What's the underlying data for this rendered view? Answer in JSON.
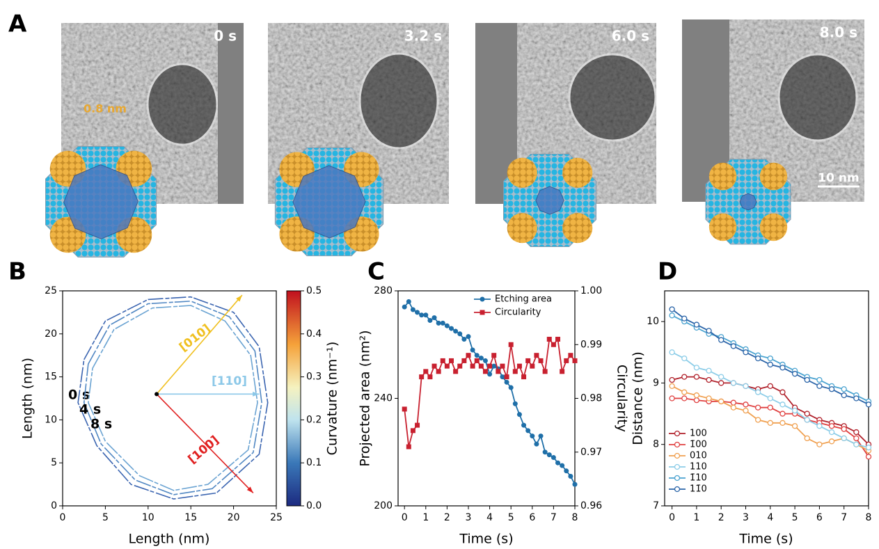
{
  "panel_a": {
    "label": "A",
    "frames": [
      "0 s",
      "3.2 s",
      "6.0 s",
      "8.0 s"
    ],
    "lattice_spacing": "0.8 nm",
    "scale_bar": "10 nm"
  },
  "chart_data": [
    {
      "type": "contour",
      "panel_label": "B",
      "xlabel": "Length (nm)",
      "ylabel": "Length (nm)",
      "xlim": [
        0,
        25
      ],
      "ylim": [
        0,
        25
      ],
      "xticks": [
        0,
        5,
        10,
        15,
        20,
        25
      ],
      "yticks": [
        0,
        5,
        10,
        15,
        20,
        25
      ],
      "colorbar_label": "Curvature (nm⁻¹)",
      "colorbar_lim": [
        0,
        0.5
      ],
      "colorbar_ticks": [
        {
          "value": 0,
          "label": "0.0"
        },
        0.1,
        0.2,
        0.3,
        0.4,
        0.5
      ],
      "series": [
        {
          "name": "0 s",
          "color": "#3a64b0",
          "x": [
            2.5,
            5,
            10,
            15,
            20,
            23,
            24,
            23,
            18,
            13,
            8,
            4,
            1.8,
            2.5
          ],
          "y": [
            17,
            21.5,
            24,
            24.3,
            22.5,
            18.5,
            12,
            6,
            1.5,
            0.8,
            2.5,
            7,
            12,
            17
          ]
        },
        {
          "name": "4 s",
          "color": "#4f86c2",
          "x": [
            3,
            5.5,
            10,
            15,
            19.5,
            22.5,
            23.3,
            22.3,
            17.5,
            13,
            8.5,
            4.5,
            2.5,
            3
          ],
          "y": [
            16.5,
            21,
            23.5,
            23.8,
            22,
            18,
            12,
            6.2,
            2,
            1.3,
            3,
            7.2,
            12,
            16.5
          ]
        },
        {
          "name": "8 s",
          "color": "#6aa3d2",
          "x": [
            3.5,
            6,
            10.5,
            15,
            19,
            22,
            22.8,
            21.7,
            17,
            13,
            9,
            5,
            3,
            3.5
          ],
          "y": [
            16,
            20.5,
            23,
            23.3,
            21.5,
            17.5,
            12,
            6.5,
            2.5,
            1.8,
            3.5,
            7.5,
            12,
            16
          ]
        }
      ],
      "annotations": [
        {
          "text": "[010]",
          "color": "#f0c020"
        },
        {
          "text": "[110]",
          "color": "#8cc8e8"
        },
        {
          "text": "[100]",
          "color": "#e02020"
        }
      ]
    },
    {
      "type": "line",
      "panel_label": "C",
      "xlabel": "Time (s)",
      "ylabel": "Projected area (nm²)",
      "y2label": "Circularity",
      "xlim": [
        -0.3,
        8
      ],
      "xticks": [
        0,
        1,
        2,
        3,
        4,
        5,
        6,
        7,
        8
      ],
      "ylim": [
        200,
        280
      ],
      "yticks": [
        200,
        240,
        280
      ],
      "y2lim": [
        0.96,
        1.0
      ],
      "y2ticks": [
        0.96,
        0.97,
        0.98,
        0.99,
        {
          "value": 1,
          "label": "1.00"
        }
      ],
      "legend": "upper right",
      "x": [
        0,
        0.2,
        0.4,
        0.6,
        0.8,
        1,
        1.2,
        1.4,
        1.6,
        1.8,
        2,
        2.2,
        2.4,
        2.6,
        2.8,
        3,
        3.2,
        3.4,
        3.6,
        3.8,
        4,
        4.2,
        4.4,
        4.6,
        4.8,
        5,
        5.2,
        5.4,
        5.6,
        5.8,
        6,
        6.2,
        6.4,
        6.6,
        6.8,
        7,
        7.2,
        7.4,
        7.6,
        7.8,
        8
      ],
      "series": [
        {
          "name": "Etching area",
          "color": "#1f6fa8",
          "marker": "circle",
          "values": [
            274,
            276,
            273,
            272,
            271,
            271,
            269,
            270,
            268,
            268,
            267,
            266,
            265,
            264,
            262,
            263,
            258,
            256,
            255,
            254,
            249,
            252,
            251,
            248,
            246,
            244,
            238,
            234,
            230,
            228,
            226,
            223,
            226,
            220,
            219,
            218,
            216,
            215,
            213,
            211,
            208
          ]
        },
        {
          "name": "Circularity",
          "color": "#c8202f",
          "marker": "square",
          "axis": "y2",
          "values": [
            0.978,
            0.971,
            0.974,
            0.975,
            0.984,
            0.985,
            0.984,
            0.986,
            0.985,
            0.987,
            0.986,
            0.987,
            0.985,
            0.986,
            0.987,
            0.988,
            0.986,
            0.987,
            0.986,
            0.985,
            0.986,
            0.988,
            0.985,
            0.986,
            0.984,
            0.99,
            0.985,
            0.986,
            0.984,
            0.987,
            0.986,
            0.988,
            0.987,
            0.985,
            0.991,
            0.99,
            0.991,
            0.985,
            0.987,
            0.988,
            0.987
          ]
        }
      ]
    },
    {
      "type": "line",
      "panel_label": "D",
      "xlabel": "Time (s)",
      "ylabel": "Distance (nm)",
      "xlim": [
        -0.3,
        8
      ],
      "xticks": [
        0,
        1,
        2,
        3,
        4,
        5,
        6,
        7,
        8
      ],
      "ylim": [
        7,
        10.5
      ],
      "yticks": [
        7,
        8,
        9,
        10
      ],
      "legend": "lower left",
      "x": [
        0,
        0.5,
        1,
        1.5,
        2,
        2.5,
        3,
        3.5,
        4,
        4.5,
        5,
        5.5,
        6,
        6.5,
        7,
        7.5,
        8
      ],
      "series": [
        {
          "name": "100",
          "color": "#b0202a",
          "marker": "open-circle",
          "values": [
            9.05,
            9.1,
            9.1,
            9.05,
            9.0,
            9.0,
            8.95,
            8.9,
            8.95,
            8.85,
            8.6,
            8.5,
            8.4,
            8.35,
            8.3,
            8.2,
            8.0
          ]
        },
        {
          "name": "1̄00",
          "color": "#e04040",
          "marker": "open-circle",
          "values": [
            8.75,
            8.75,
            8.72,
            8.7,
            8.7,
            8.68,
            8.65,
            8.6,
            8.6,
            8.5,
            8.5,
            8.4,
            8.35,
            8.3,
            8.25,
            8.1,
            7.8
          ]
        },
        {
          "name": "010",
          "color": "#f0a050",
          "marker": "open-circle",
          "values": [
            8.95,
            8.85,
            8.8,
            8.75,
            8.7,
            8.6,
            8.55,
            8.4,
            8.35,
            8.35,
            8.3,
            8.1,
            8.0,
            8.05,
            8.1,
            8.0,
            7.9
          ]
        },
        {
          "name": "110",
          "color": "#8ccde8",
          "marker": "open-circle",
          "values": [
            9.5,
            9.4,
            9.25,
            9.2,
            9.1,
            9.0,
            8.95,
            8.85,
            8.75,
            8.65,
            8.55,
            8.4,
            8.3,
            8.2,
            8.1,
            8.0,
            7.95
          ]
        },
        {
          "name": "1̄10",
          "color": "#4aa3d0",
          "marker": "open-circle",
          "values": [
            10.1,
            10.0,
            9.9,
            9.8,
            9.75,
            9.65,
            9.55,
            9.45,
            9.4,
            9.3,
            9.2,
            9.1,
            9.05,
            8.95,
            8.9,
            8.8,
            8.7
          ]
        },
        {
          "name": "11̄0",
          "color": "#2a64a8",
          "marker": "open-circle",
          "values": [
            10.2,
            10.05,
            9.95,
            9.85,
            9.7,
            9.6,
            9.5,
            9.4,
            9.3,
            9.25,
            9.15,
            9.05,
            8.95,
            8.9,
            8.8,
            8.75,
            8.65
          ]
        }
      ]
    }
  ]
}
